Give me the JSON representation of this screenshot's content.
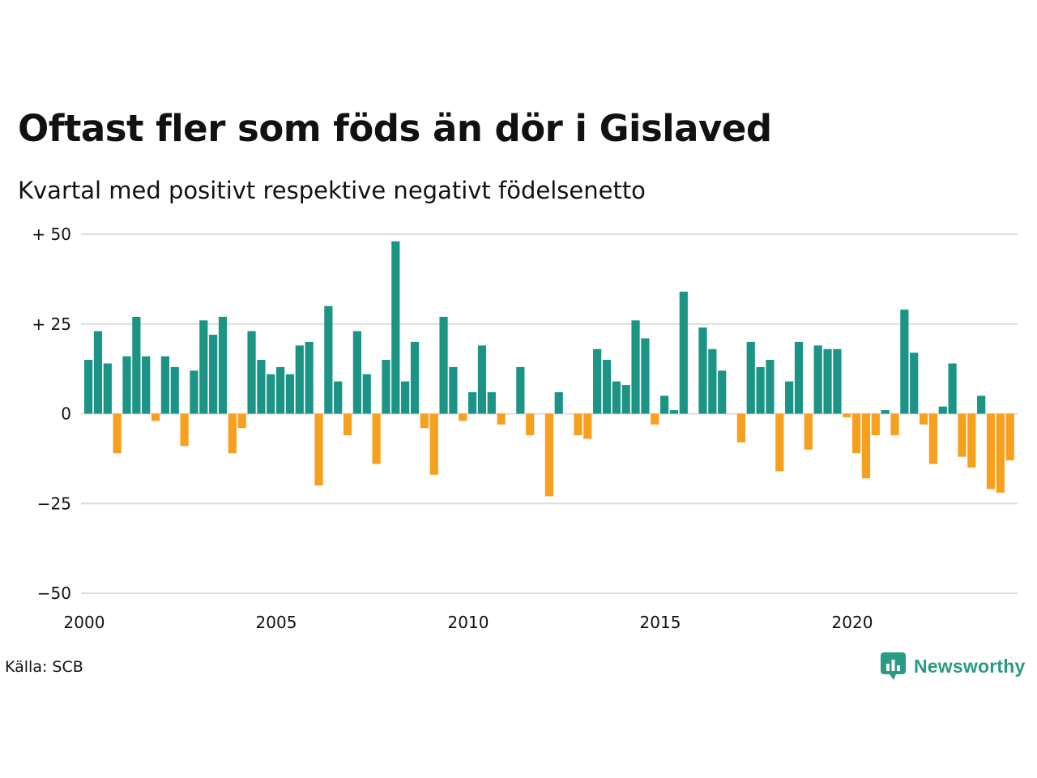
{
  "title": "Oftast fler som föds än dör i Gislaved",
  "subtitle": "Kvartal med positivt respektive negativt födelsenetto",
  "source": "Källa: SCB",
  "brand": "Newsworthy",
  "colors": {
    "positive": "#1b9485",
    "negative": "#f7a01d",
    "grid": "#dcdcdc",
    "brand": "#2a9a86"
  },
  "chart_data": {
    "type": "bar",
    "ylim": [
      -50,
      50
    ],
    "yticks": [
      {
        "value": 50,
        "label": "+ 50"
      },
      {
        "value": 25,
        "label": "+ 25"
      },
      {
        "value": 0,
        "label": "0"
      },
      {
        "value": -25,
        "label": "−25"
      },
      {
        "value": -50,
        "label": "−50"
      }
    ],
    "xticks": [
      {
        "year": 2000,
        "label": "2000"
      },
      {
        "year": 2005,
        "label": "2005"
      },
      {
        "year": 2010,
        "label": "2010"
      },
      {
        "year": 2015,
        "label": "2015"
      },
      {
        "year": 2020,
        "label": "2020"
      }
    ],
    "start_year": 2000,
    "start_quarter": 1,
    "grid": true,
    "values": [
      15,
      23,
      14,
      -11,
      16,
      27,
      16,
      -2,
      16,
      13,
      -9,
      12,
      26,
      22,
      27,
      -11,
      -4,
      23,
      15,
      11,
      13,
      11,
      19,
      20,
      -20,
      30,
      9,
      -6,
      23,
      11,
      -14,
      15,
      48,
      9,
      20,
      -4,
      -17,
      27,
      13,
      -2,
      6,
      19,
      6,
      -3,
      0,
      13,
      -6,
      0,
      -23,
      6,
      0,
      -6,
      -7,
      18,
      15,
      9,
      8,
      26,
      21,
      -3,
      5,
      1,
      34,
      0,
      24,
      18,
      12,
      0,
      -8,
      20,
      13,
      15,
      -16,
      9,
      20,
      -10,
      19,
      18,
      18,
      -1,
      -11,
      -18,
      -6,
      1,
      -6,
      29,
      17,
      -3,
      -14,
      2,
      14,
      -12,
      -15,
      5,
      -21,
      -22,
      -13
    ]
  }
}
